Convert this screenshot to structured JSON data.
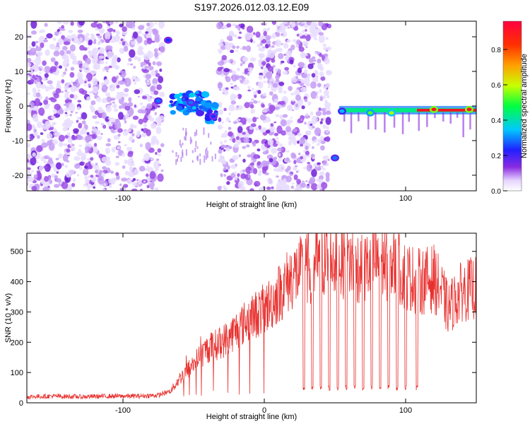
{
  "title": "S197.2026.012.03.12.E09",
  "colors": {
    "snr_line": "#e8312f",
    "spectrum_blob": "#8a2be2",
    "frame": "#000000"
  },
  "colorbar": {
    "label": "Normalized spectral amplitude",
    "ticks": [
      "0.0",
      "0.2",
      "0.4",
      "0.6",
      "0.8"
    ],
    "tick_values": [
      0.0,
      0.2,
      0.4,
      0.6,
      0.8
    ],
    "range": [
      0.0,
      0.96
    ],
    "colormap": "rainbow (purple-blue-cyan-green-yellow-orange-red)"
  },
  "chart_data": [
    {
      "type": "heatmap",
      "xlabel": "Height of straight line (km)",
      "ylabel": "Frequency (Hz)",
      "xlim": [
        -168,
        150
      ],
      "ylim": [
        -24.5,
        24.5
      ],
      "xticks": [
        -100,
        0,
        100
      ],
      "yticks": [
        -20,
        -10,
        0,
        10,
        20
      ],
      "xtick_labels": [
        "-100",
        "0",
        "100"
      ],
      "ytick_labels": [
        "-20",
        "-10",
        "0",
        "10",
        "20"
      ],
      "noise_regions": [
        [
          -168,
          -72
        ],
        [
          -32,
          46
        ]
      ],
      "features": [
        {
          "x": -75,
          "y": 1.5,
          "amp": 0.3
        },
        {
          "x": -68,
          "y": 19,
          "amp": 0.25
        },
        {
          "x": -52,
          "y": 1.0,
          "amp": 0.3
        },
        {
          "x": -36,
          "y": -3,
          "amp": 0.25
        },
        {
          "x": 50,
          "y": -15,
          "amp": 0.3
        },
        {
          "x": 55,
          "y": -1.5,
          "amp": 0.35
        },
        {
          "x": 75,
          "y": -2,
          "amp": 0.55
        },
        {
          "x": 90,
          "y": -2,
          "amp": 0.6
        },
        {
          "x": 120,
          "y": -1,
          "amp": 0.95
        },
        {
          "x": 145,
          "y": -1,
          "amp": 0.95
        }
      ]
    },
    {
      "type": "line",
      "xlabel": "Height of straight line (km)",
      "ylabel": "SNR (10 * v/v)",
      "xlim": [
        -168,
        150
      ],
      "ylim": [
        0,
        560
      ],
      "xticks": [
        -100,
        0,
        100
      ],
      "yticks": [
        0,
        100,
        200,
        300,
        400,
        500
      ],
      "xtick_labels": [
        "-100",
        "0",
        "100"
      ],
      "ytick_labels": [
        "0",
        "100",
        "200",
        "300",
        "400",
        "500"
      ],
      "series": [
        {
          "x": [
            -168,
            -150,
            -130,
            -110,
            -90,
            -75,
            -66,
            -60,
            -50,
            -40,
            -30,
            -20,
            -10,
            0,
            5,
            10,
            20,
            30,
            40,
            50,
            60,
            70,
            80,
            90,
            100,
            110,
            120,
            125,
            130,
            140,
            150
          ],
          "y": [
            20,
            22,
            20,
            22,
            22,
            25,
            40,
            80,
            130,
            180,
            200,
            240,
            280,
            310,
            330,
            360,
            420,
            440,
            470,
            480,
            470,
            440,
            470,
            460,
            420,
            400,
            410,
            370,
            310,
            370,
            380
          ],
          "dropouts_x": [
            28,
            34,
            40,
            46,
            52,
            58,
            64,
            70,
            76,
            82,
            88,
            94,
            100,
            108
          ],
          "dropout_level": 40
        }
      ]
    }
  ]
}
